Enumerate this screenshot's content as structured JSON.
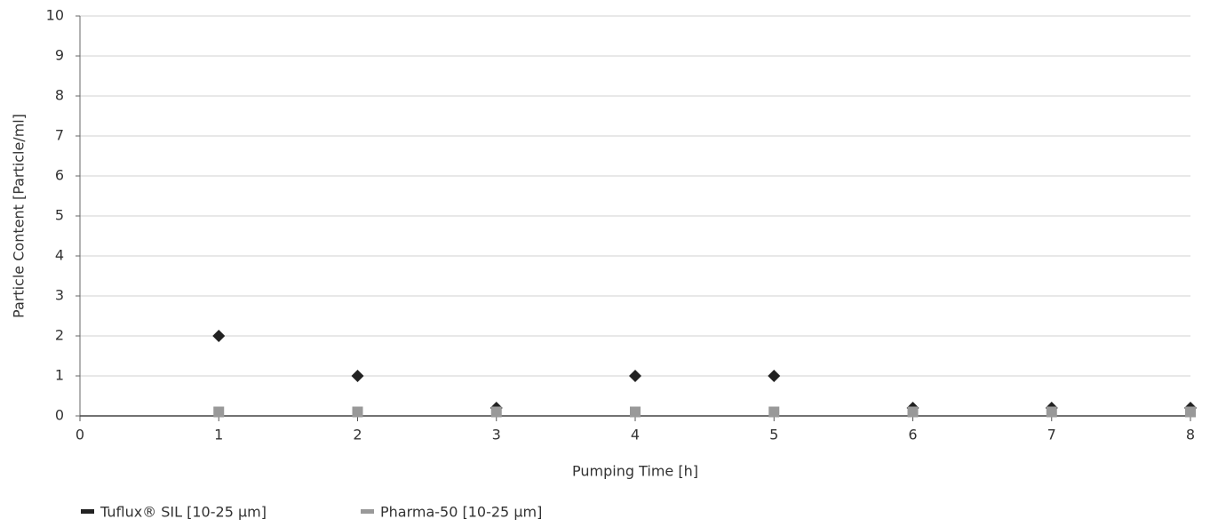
{
  "chart_data": {
    "type": "scatter",
    "xlabel": "Pumping Time [h]",
    "ylabel": "Particle Content [Particle/ml]",
    "xlim": [
      0,
      8
    ],
    "xticks": [
      0,
      1,
      2,
      3,
      4,
      5,
      6,
      7,
      8
    ],
    "ylim": [
      0,
      10
    ],
    "yticks": [
      0,
      1,
      2,
      3,
      4,
      5,
      6,
      7,
      8,
      9,
      10
    ],
    "grid": true,
    "series": [
      {
        "name": "Tuflux® SIL [10-25 µm]",
        "color": "#222222",
        "marker": "diamond",
        "x": [
          1,
          2,
          3,
          4,
          5,
          6,
          7,
          8
        ],
        "values": [
          2,
          1,
          0.2,
          1,
          1,
          0.2,
          0.2,
          0.2
        ]
      },
      {
        "name": "Pharma-50 [10-25 µm]",
        "color": "#999999",
        "marker": "square",
        "x": [
          1,
          2,
          3,
          4,
          5,
          6,
          7,
          8
        ],
        "values": [
          0.1,
          0.1,
          0.1,
          0.1,
          0.1,
          0.1,
          0.1,
          0.1
        ]
      }
    ]
  }
}
